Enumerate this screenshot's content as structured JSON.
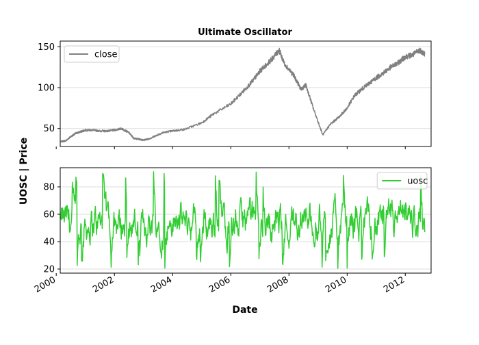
{
  "chart_data": {
    "type": "line",
    "title": "Ultimate Oscillator",
    "xlabel": "Date",
    "ylabel": "UOSC | Price",
    "x_range": [
      "2000-02-20",
      "2012-11-20"
    ],
    "x_ticks": [
      "2000",
      "2002",
      "2004",
      "2006",
      "2008",
      "2010",
      "2012"
    ],
    "grid": "horizontal",
    "panels": [
      {
        "name": "price",
        "ylim": [
          28,
          157
        ],
        "yticks": [
          50,
          100,
          150
        ],
        "legend": "top-left",
        "series": [
          {
            "name": "close",
            "color": "#808080",
            "points": [
              [
                "2000-03-01",
                34
              ],
              [
                "2000-05-01",
                35
              ],
              [
                "2000-07-01",
                40
              ],
              [
                "2000-09-01",
                44
              ],
              [
                "2000-11-01",
                46
              ],
              [
                "2001-01-01",
                48
              ],
              [
                "2001-04-01",
                48
              ],
              [
                "2001-07-01",
                47
              ],
              [
                "2001-10-01",
                47
              ],
              [
                "2002-01-01",
                48
              ],
              [
                "2002-04-01",
                50
              ],
              [
                "2002-07-01",
                45
              ],
              [
                "2002-09-01",
                38
              ],
              [
                "2002-11-01",
                37
              ],
              [
                "2003-01-01",
                36
              ],
              [
                "2003-03-01",
                37
              ],
              [
                "2003-06-01",
                41
              ],
              [
                "2003-09-01",
                45
              ],
              [
                "2004-01-01",
                47
              ],
              [
                "2004-06-01",
                49
              ],
              [
                "2005-01-01",
                57
              ],
              [
                "2005-06-01",
                68
              ],
              [
                "2006-01-01",
                80
              ],
              [
                "2006-06-01",
                95
              ],
              [
                "2006-10-01",
                108
              ],
              [
                "2007-01-01",
                120
              ],
              [
                "2007-06-01",
                135
              ],
              [
                "2007-09-01",
                146
              ],
              [
                "2007-11-01",
                130
              ],
              [
                "2008-03-01",
                115
              ],
              [
                "2008-06-01",
                98
              ],
              [
                "2008-08-01",
                103
              ],
              [
                "2008-11-01",
                75
              ],
              [
                "2009-03-01",
                42
              ],
              [
                "2009-06-01",
                55
              ],
              [
                "2009-10-01",
                65
              ],
              [
                "2010-01-01",
                75
              ],
              [
                "2010-04-01",
                90
              ],
              [
                "2010-07-01",
                98
              ],
              [
                "2010-10-01",
                105
              ],
              [
                "2011-01-01",
                112
              ],
              [
                "2011-04-01",
                118
              ],
              [
                "2011-07-01",
                125
              ],
              [
                "2011-10-01",
                130
              ],
              [
                "2012-01-01",
                138
              ],
              [
                "2012-04-01",
                140
              ],
              [
                "2012-07-01",
                146
              ],
              [
                "2012-09-01",
                141
              ]
            ]
          }
        ]
      },
      {
        "name": "oscillator",
        "ylim": [
          17,
          94
        ],
        "yticks": [
          20,
          40,
          60,
          80
        ],
        "legend": "top-right",
        "series": [
          {
            "name": "uosc",
            "color": "#32cd32",
            "x_start": "2000-03-01",
            "x_end": "2012-09-01",
            "range": [
              20,
              91
            ],
            "typical_range": [
              32,
              75
            ]
          }
        ]
      }
    ]
  }
}
